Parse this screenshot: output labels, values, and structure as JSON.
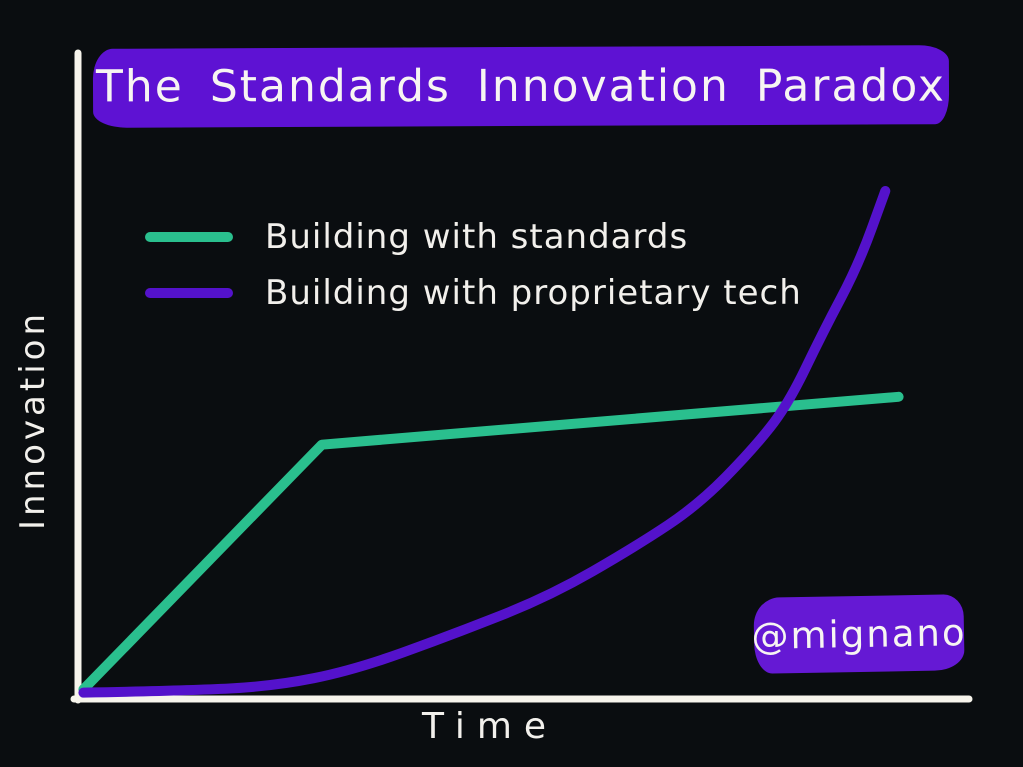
{
  "title": "The Standards Innovation Paradox",
  "credit": "@mignano",
  "colors": {
    "background": "#0a0d10",
    "banner": "#5e12d3",
    "badge": "#6519d4",
    "axis": "#f7f4ec",
    "text": "#f2f0ec",
    "standards_line": "#2abf8e",
    "proprietary_line": "#5412cb"
  },
  "chart_data": {
    "type": "line",
    "title": "The Standards Innovation Paradox",
    "xlabel": "Time",
    "ylabel": "Innovation",
    "x_range": [
      0,
      10
    ],
    "y_range": [
      0,
      10
    ],
    "grid": false,
    "tick_labels": "none (conceptual hand-drawn sketch, unlabeled axes)",
    "legend_position": "upper-left",
    "series": [
      {
        "name": "Building with standards",
        "color": "#2abf8e",
        "shape": "fast linear rise then near-plateau with slight upward slope",
        "points": [
          [
            0.05,
            0.15
          ],
          [
            2.74,
            3.98
          ],
          [
            9.25,
            4.73
          ]
        ]
      },
      {
        "name": "Building with proprietary tech",
        "color": "#5412cb",
        "shape": "exponential growth, crosses standards line near x=8",
        "points": [
          [
            0.05,
            0.1
          ],
          [
            1.2,
            0.13
          ],
          [
            2.2,
            0.2
          ],
          [
            3.1,
            0.45
          ],
          [
            4.2,
            1.0
          ],
          [
            5.3,
            1.6
          ],
          [
            6.3,
            2.4
          ],
          [
            7.0,
            3.05
          ],
          [
            7.6,
            3.9
          ],
          [
            8.0,
            4.6
          ],
          [
            8.4,
            5.75
          ],
          [
            8.8,
            6.8
          ],
          [
            9.1,
            7.95
          ]
        ]
      }
    ],
    "crossover_point": [
      8.0,
      4.6
    ],
    "annotations": [
      "@mignano"
    ]
  }
}
